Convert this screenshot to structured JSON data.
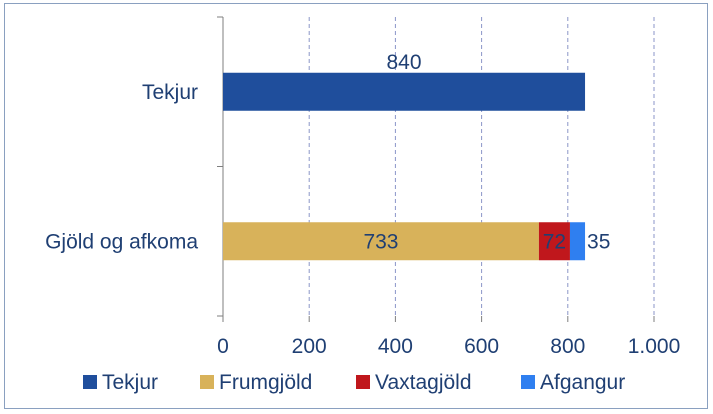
{
  "chart_data": {
    "type": "bar",
    "orientation": "horizontal",
    "stacked": true,
    "categories": [
      "Tekjur",
      "Gjöld og afkoma"
    ],
    "series": [
      {
        "name": "Tekjur",
        "color": "#1f4e9c",
        "values": [
          840,
          null
        ]
      },
      {
        "name": "Frumgjöld",
        "color": "#d8b25a",
        "values": [
          null,
          733
        ]
      },
      {
        "name": "Vaxtagjöld",
        "color": "#c0171c",
        "values": [
          null,
          72
        ]
      },
      {
        "name": "Afgangur",
        "color": "#2f7ff0",
        "values": [
          null,
          35
        ]
      }
    ],
    "data_labels": {
      "Tekjur": [
        "840",
        ""
      ],
      "Frumgjöld": [
        "",
        "733"
      ],
      "Vaxtagjöld": [
        "",
        "72"
      ],
      "Afgangur": [
        "",
        "35"
      ]
    },
    "xlim": [
      0,
      1000
    ],
    "xticks": [
      0,
      200,
      400,
      600,
      800,
      1000
    ],
    "xtick_labels": [
      "0",
      "200",
      "400",
      "600",
      "800",
      "1.000"
    ],
    "grid": "vertical-dashed",
    "legend": "bottom",
    "title": "",
    "xlabel": "",
    "ylabel": ""
  }
}
